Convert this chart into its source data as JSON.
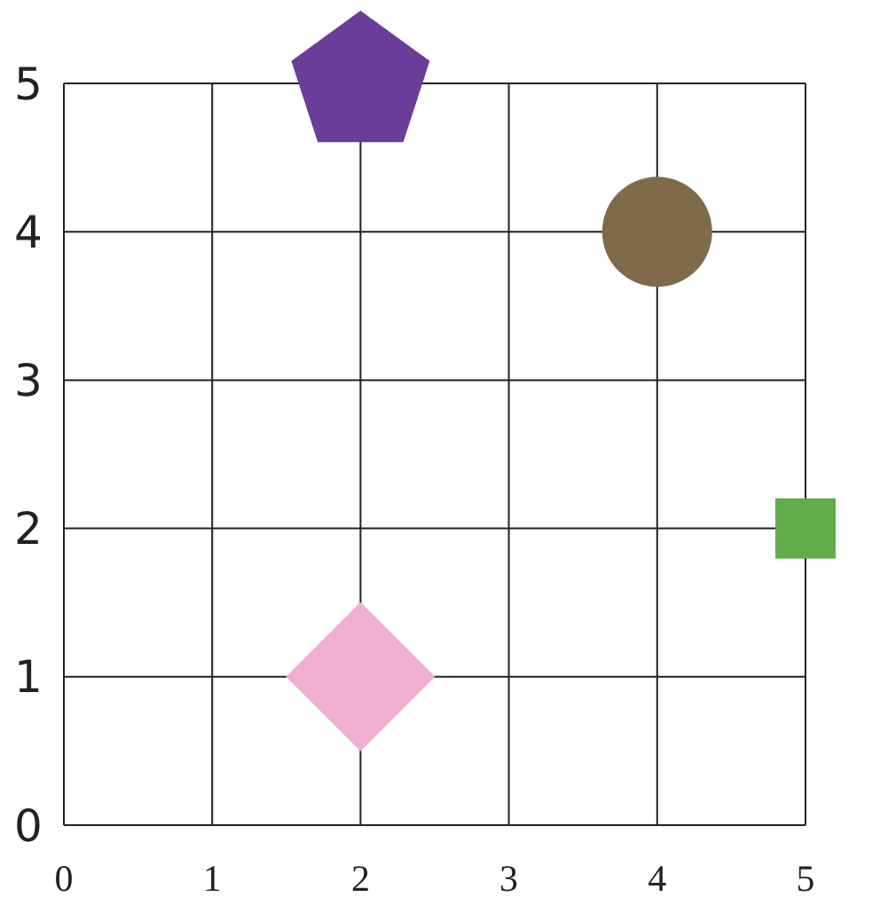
{
  "chart_data": {
    "type": "scatter",
    "xlim": [
      0,
      5
    ],
    "ylim": [
      0,
      5
    ],
    "xticks": [
      0,
      1,
      2,
      3,
      4,
      5
    ],
    "yticks": [
      0,
      1,
      2,
      3,
      4,
      5
    ],
    "grid": true,
    "series": [
      {
        "color": "#6a3d9a",
        "x": [
          2
        ],
        "values": [
          5
        ]
      },
      {
        "color": "#7f6a4a",
        "marker": "circle",
        "x": [
          4
        ],
        "values": [
          4
        ]
      },
      {
        "color": "#62ad4a",
        "marker": "square",
        "x": [
          5
        ],
        "values": [
          2
        ]
      },
      {
        "color": "#f2aed0",
        "marker": "diamond",
        "x": [
          2
        ],
        "values": [
          1
        ]
      }
    ]
  }
}
